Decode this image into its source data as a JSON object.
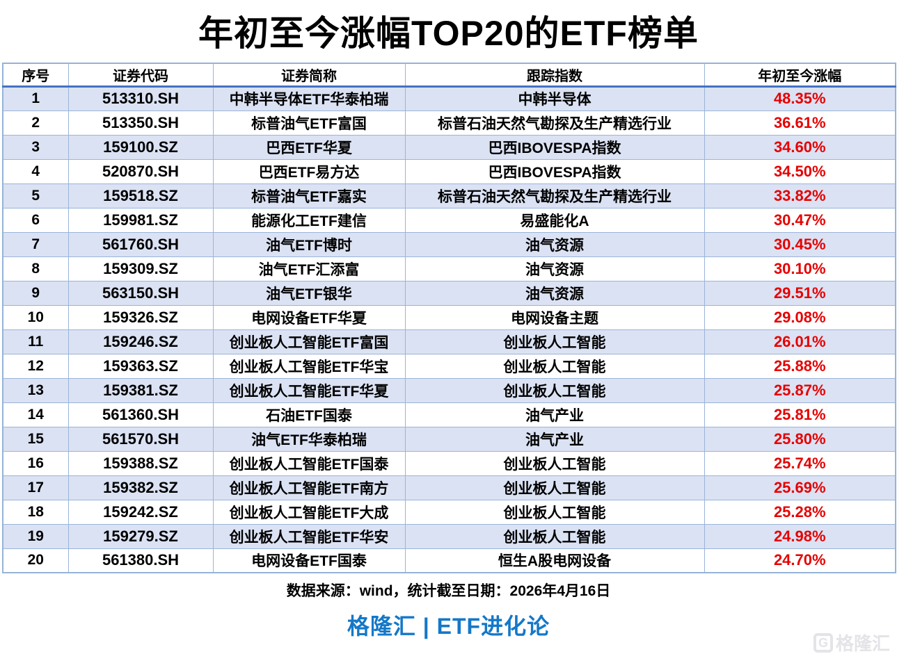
{
  "title": "年初至今涨幅TOP20的ETF榜单",
  "chart_data": {
    "type": "table",
    "title": "年初至今涨幅TOP20的ETF榜单",
    "columns": [
      "序号",
      "证券代码",
      "证券简称",
      "跟踪指数",
      "年初至今涨幅"
    ],
    "rows": [
      [
        "1",
        "513310.SH",
        "中韩半导体ETF华泰柏瑞",
        "中韩半导体",
        "48.35%"
      ],
      [
        "2",
        "513350.SH",
        "标普油气ETF富国",
        "标普石油天然气勘探及生产精选行业",
        "36.61%"
      ],
      [
        "3",
        "159100.SZ",
        "巴西ETF华夏",
        "巴西IBOVESPA指数",
        "34.60%"
      ],
      [
        "4",
        "520870.SH",
        "巴西ETF易方达",
        "巴西IBOVESPA指数",
        "34.50%"
      ],
      [
        "5",
        "159518.SZ",
        "标普油气ETF嘉实",
        "标普石油天然气勘探及生产精选行业",
        "33.82%"
      ],
      [
        "6",
        "159981.SZ",
        "能源化工ETF建信",
        "易盛能化A",
        "30.47%"
      ],
      [
        "7",
        "561760.SH",
        "油气ETF博时",
        "油气资源",
        "30.45%"
      ],
      [
        "8",
        "159309.SZ",
        "油气ETF汇添富",
        "油气资源",
        "30.10%"
      ],
      [
        "9",
        "563150.SH",
        "油气ETF银华",
        "油气资源",
        "29.51%"
      ],
      [
        "10",
        "159326.SZ",
        "电网设备ETF华夏",
        "电网设备主题",
        "29.08%"
      ],
      [
        "11",
        "159246.SZ",
        "创业板人工智能ETF富国",
        "创业板人工智能",
        "26.01%"
      ],
      [
        "12",
        "159363.SZ",
        "创业板人工智能ETF华宝",
        "创业板人工智能",
        "25.88%"
      ],
      [
        "13",
        "159381.SZ",
        "创业板人工智能ETF华夏",
        "创业板人工智能",
        "25.87%"
      ],
      [
        "14",
        "561360.SH",
        "石油ETF国泰",
        "油气产业",
        "25.81%"
      ],
      [
        "15",
        "561570.SH",
        "油气ETF华泰柏瑞",
        "油气产业",
        "25.80%"
      ],
      [
        "16",
        "159388.SZ",
        "创业板人工智能ETF国泰",
        "创业板人工智能",
        "25.74%"
      ],
      [
        "17",
        "159382.SZ",
        "创业板人工智能ETF南方",
        "创业板人工智能",
        "25.69%"
      ],
      [
        "18",
        "159242.SZ",
        "创业板人工智能ETF大成",
        "创业板人工智能",
        "25.28%"
      ],
      [
        "19",
        "159279.SZ",
        "创业板人工智能ETF华安",
        "创业板人工智能",
        "24.98%"
      ],
      [
        "20",
        "561380.SH",
        "电网设备ETF国泰",
        "恒生A股电网设备",
        "24.70%"
      ]
    ]
  },
  "footer": {
    "source_note": "数据来源：wind，统计截至日期：2026年4月16日",
    "brand_line": "格隆汇 | ETF进化论"
  },
  "watermark": {
    "glyph": "G",
    "text": "格隆汇"
  },
  "colors": {
    "row_band": "#dbe2f3",
    "cell_border": "#9ab4d9",
    "header_rule": "#4472c4",
    "gain_red": "#e60000",
    "brand_blue": "#1478c8",
    "watermark_gray": "#e4e4e8"
  }
}
